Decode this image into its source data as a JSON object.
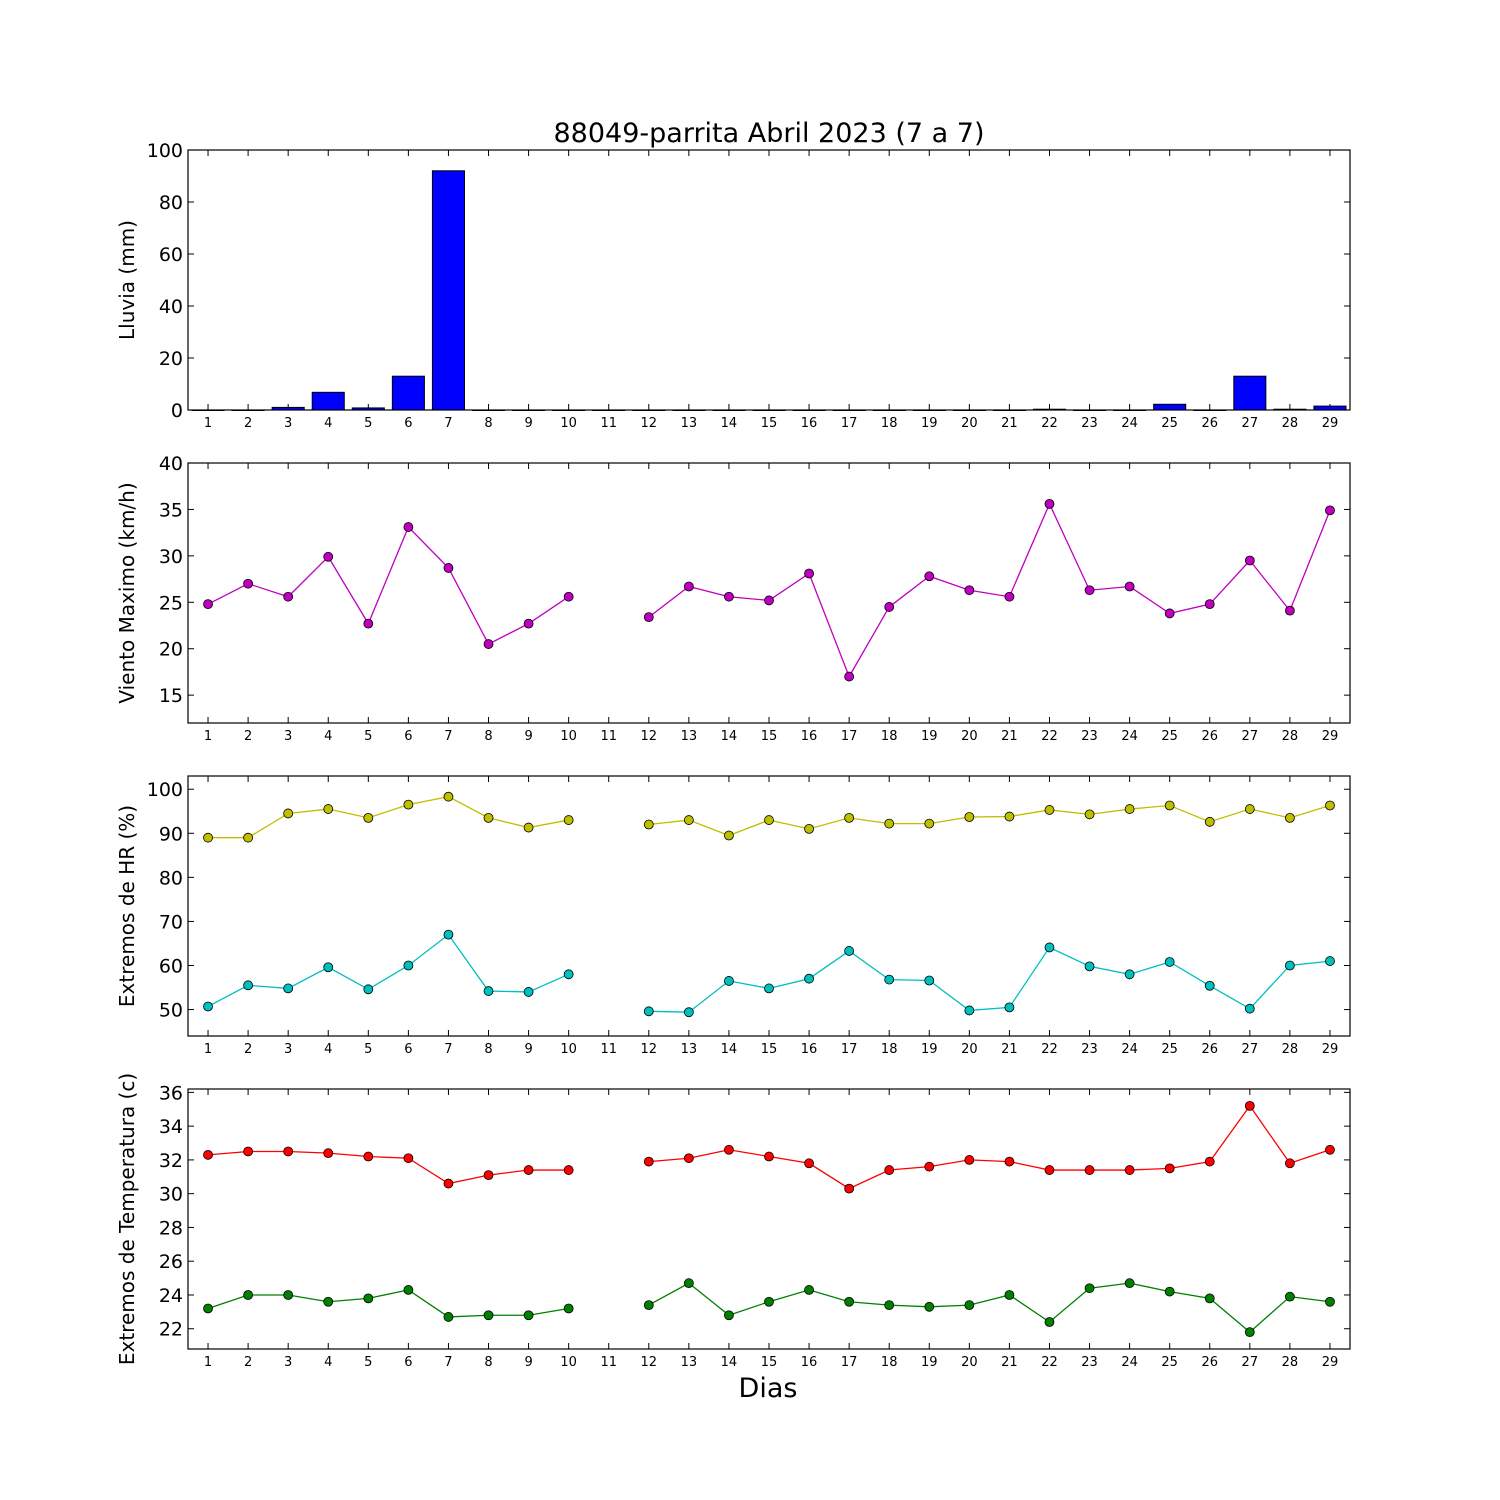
{
  "title": "88049-parrita Abril 2023  (7 a 7)",
  "xlabel": "Dias",
  "colors": {
    "rain": "#0000ff",
    "wind": "#bf00bf",
    "hr_max": "#bfbf00",
    "hr_min": "#00bfbf",
    "t_max": "#ff0000",
    "t_min": "#008000"
  },
  "chart_data": [
    {
      "type": "bar",
      "ylabel": "Lluvia (mm)",
      "ylim": [
        0,
        100
      ],
      "yticks": [
        0,
        20,
        40,
        60,
        80,
        100
      ],
      "x": [
        1,
        2,
        3,
        4,
        5,
        6,
        7,
        8,
        9,
        10,
        11,
        12,
        13,
        14,
        15,
        16,
        17,
        18,
        19,
        20,
        21,
        22,
        23,
        24,
        25,
        26,
        27,
        28,
        29
      ],
      "series": [
        {
          "color_key": "rain",
          "values": [
            0,
            0,
            1,
            6.8,
            0.8,
            13,
            92,
            0,
            0,
            0,
            0,
            0,
            0,
            0,
            0,
            0,
            0,
            0,
            0,
            0,
            0,
            0.3,
            0,
            0,
            2.2,
            0,
            13,
            0.3,
            1.5
          ]
        }
      ]
    },
    {
      "type": "line",
      "ylabel": "Viento Maximo (km/h)",
      "ylim": [
        12,
        40
      ],
      "yticks": [
        15,
        20,
        25,
        30,
        35,
        40
      ],
      "x": [
        1,
        2,
        3,
        4,
        5,
        6,
        7,
        8,
        9,
        10,
        11,
        12,
        13,
        14,
        15,
        16,
        17,
        18,
        19,
        20,
        21,
        22,
        23,
        24,
        25,
        26,
        27,
        28,
        29
      ],
      "series": [
        {
          "color_key": "wind",
          "values": [
            24.8,
            27.0,
            25.6,
            29.9,
            22.7,
            33.1,
            28.7,
            20.5,
            22.7,
            25.6,
            null,
            23.4,
            26.7,
            25.6,
            25.2,
            28.1,
            17.0,
            24.5,
            27.8,
            26.3,
            25.6,
            35.6,
            26.3,
            26.7,
            23.8,
            24.8,
            29.5,
            24.1,
            34.9
          ]
        }
      ]
    },
    {
      "type": "line",
      "ylabel": "Extremos de HR (%)",
      "ylim": [
        44,
        103
      ],
      "yticks": [
        50,
        60,
        70,
        80,
        90,
        100
      ],
      "x": [
        1,
        2,
        3,
        4,
        5,
        6,
        7,
        8,
        9,
        10,
        11,
        12,
        13,
        14,
        15,
        16,
        17,
        18,
        19,
        20,
        21,
        22,
        23,
        24,
        25,
        26,
        27,
        28,
        29
      ],
      "series": [
        {
          "color_key": "hr_max",
          "values": [
            89,
            89,
            94.5,
            95.5,
            93.5,
            96.5,
            98.3,
            93.5,
            91.3,
            93,
            null,
            92,
            93,
            89.5,
            93,
            91,
            93.5,
            92.2,
            92.2,
            93.7,
            93.8,
            95.3,
            94.3,
            95.5,
            96.3,
            92.6,
            95.5,
            93.5,
            96.3
          ]
        },
        {
          "color_key": "hr_min",
          "values": [
            50.7,
            55.5,
            54.8,
            59.6,
            54.6,
            60,
            67,
            54.2,
            54,
            58,
            null,
            49.6,
            49.4,
            56.5,
            54.8,
            57,
            63.3,
            56.8,
            56.6,
            49.8,
            50.5,
            64.1,
            59.8,
            58,
            60.8,
            55.4,
            50.2,
            60,
            61
          ]
        }
      ]
    },
    {
      "type": "line",
      "ylabel": "Extremos de Temperatura (c)",
      "ylim": [
        20.8,
        36.2
      ],
      "yticks": [
        22,
        24,
        26,
        28,
        30,
        32,
        34,
        36
      ],
      "x": [
        1,
        2,
        3,
        4,
        5,
        6,
        7,
        8,
        9,
        10,
        11,
        12,
        13,
        14,
        15,
        16,
        17,
        18,
        19,
        20,
        21,
        22,
        23,
        24,
        25,
        26,
        27,
        28,
        29
      ],
      "series": [
        {
          "color_key": "t_max",
          "values": [
            32.3,
            32.5,
            32.5,
            32.4,
            32.2,
            32.1,
            30.6,
            31.1,
            31.4,
            31.4,
            null,
            31.9,
            32.1,
            32.6,
            32.2,
            31.8,
            30.3,
            31.4,
            31.6,
            32.0,
            31.9,
            31.4,
            31.4,
            31.4,
            31.5,
            31.9,
            35.2,
            31.8,
            32.6
          ]
        },
        {
          "color_key": "t_min",
          "values": [
            23.2,
            24.0,
            24.0,
            23.6,
            23.8,
            24.3,
            22.7,
            22.8,
            22.8,
            23.2,
            null,
            23.4,
            24.7,
            22.8,
            23.6,
            24.3,
            23.6,
            23.4,
            23.3,
            23.4,
            24.0,
            22.4,
            24.4,
            24.7,
            24.2,
            23.8,
            21.8,
            23.9,
            23.6
          ]
        }
      ]
    }
  ]
}
